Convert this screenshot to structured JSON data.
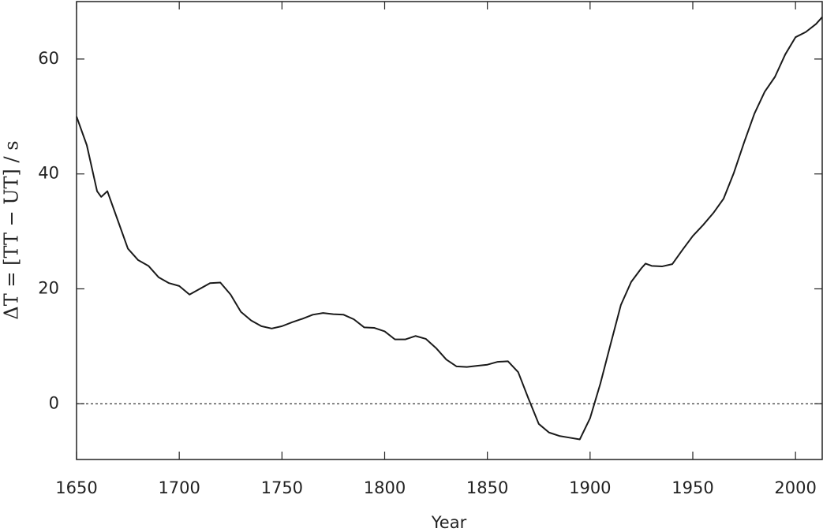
{
  "chart_data": {
    "type": "line",
    "x_label": "Year",
    "y_label": "ΔT = [TT − UT] / s",
    "xlim": [
      1650,
      2013
    ],
    "ylim": [
      -9.7,
      70
    ],
    "xticks": [
      1650,
      1700,
      1750,
      1800,
      1850,
      1900,
      1950,
      2000
    ],
    "yticks": [
      0,
      20,
      40,
      60
    ],
    "zero_line": true,
    "series": [
      {
        "color": "#1a1a1a",
        "x": [
          1650,
          1655,
          1660,
          1662,
          1665,
          1670,
          1675,
          1680,
          1685,
          1690,
          1695,
          1700,
          1705,
          1710,
          1715,
          1720,
          1725,
          1730,
          1735,
          1740,
          1745,
          1750,
          1755,
          1760,
          1765,
          1770,
          1775,
          1780,
          1785,
          1790,
          1795,
          1800,
          1805,
          1810,
          1815,
          1820,
          1825,
          1830,
          1835,
          1840,
          1845,
          1850,
          1855,
          1860,
          1865,
          1870,
          1875,
          1880,
          1885,
          1890,
          1895,
          1900,
          1905,
          1910,
          1915,
          1920,
          1925,
          1927,
          1930,
          1935,
          1940,
          1945,
          1950,
          1955,
          1960,
          1965,
          1970,
          1975,
          1980,
          1985,
          1990,
          1995,
          2000,
          2005,
          2010,
          2013
        ],
        "values": [
          50,
          45,
          37,
          36,
          37,
          32,
          27,
          25,
          24,
          22,
          21,
          20.5,
          19,
          20,
          21,
          21.1,
          19,
          16,
          14.5,
          13.5,
          13.1,
          13.5,
          14.2,
          14.8,
          15.5,
          15.8,
          15.6,
          15.5,
          14.7,
          13.3,
          13.2,
          12.6,
          11.2,
          11.2,
          11.8,
          11.3,
          9.7,
          7.7,
          6.5,
          6.4,
          6.6,
          6.8,
          7.3,
          7.4,
          5.5,
          0.9,
          -3.5,
          -5.0,
          -5.6,
          -5.9,
          -6.2,
          -2.5,
          3.5,
          10.4,
          17.2,
          21.2,
          23.6,
          24.4,
          24.0,
          23.9,
          24.3,
          26.8,
          29.2,
          31.1,
          33.2,
          35.7,
          40.2,
          45.5,
          50.5,
          54.3,
          56.9,
          60.8,
          63.8,
          64.7,
          66.1,
          67.3
        ]
      }
    ]
  }
}
